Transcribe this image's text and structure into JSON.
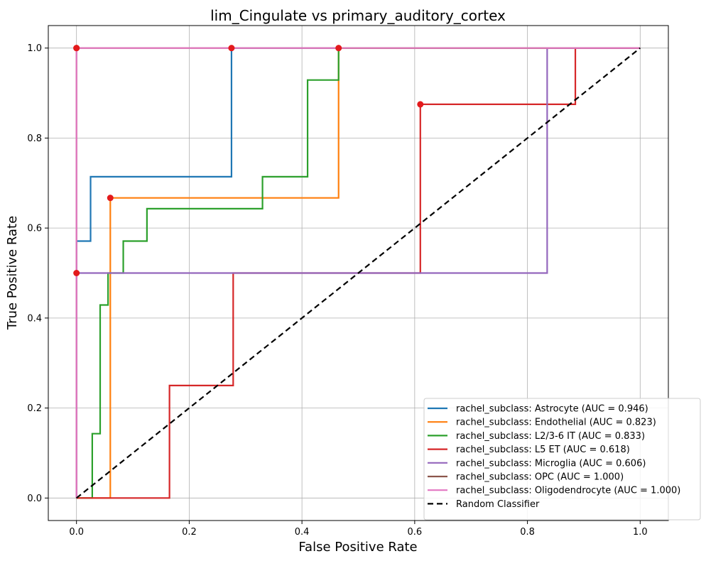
{
  "chart_data": {
    "type": "line",
    "title": "lim_Cingulate vs primary_auditory_cortex",
    "xlabel": "False Positive Rate",
    "ylabel": "True Positive Rate",
    "xlim": [
      -0.05,
      1.05
    ],
    "ylim": [
      -0.05,
      1.05
    ],
    "xticks": [
      0.0,
      0.2,
      0.4,
      0.6,
      0.8,
      1.0
    ],
    "xtick_labels": [
      "0.0",
      "0.2",
      "0.4",
      "0.6",
      "0.8",
      "1.0"
    ],
    "yticks": [
      0.0,
      0.2,
      0.4,
      0.6,
      0.8,
      1.0
    ],
    "ytick_labels": [
      "0.0",
      "0.2",
      "0.4",
      "0.6",
      "0.8",
      "1.0"
    ],
    "grid": true,
    "legend_position": "lower-right",
    "series": [
      {
        "name": "rachel_subclass: Astrocyte (AUC = 0.946)",
        "color": "#1f77b4",
        "x": [
          0,
          0,
          0.025,
          0.025,
          0.275,
          0.275,
          1.0
        ],
        "y": [
          0,
          0.571,
          0.571,
          0.714,
          0.714,
          1.0,
          1.0
        ],
        "marker": [
          0.275,
          1.0
        ]
      },
      {
        "name": "rachel_subclass: Endothelial (AUC = 0.823)",
        "color": "#ff7f0e",
        "x": [
          0,
          0.06,
          0.06,
          0.465,
          0.465,
          1.0
        ],
        "y": [
          0,
          0,
          0.667,
          0.667,
          1.0,
          1.0
        ],
        "marker": [
          0.06,
          0.667
        ]
      },
      {
        "name": "rachel_subclass: L2/3-6 IT (AUC = 0.833)",
        "color": "#2ca02c",
        "x": [
          0,
          0.028,
          0.028,
          0.042,
          0.042,
          0.056,
          0.056,
          0.083,
          0.083,
          0.125,
          0.125,
          0.33,
          0.33,
          0.41,
          0.41,
          0.465,
          0.465,
          1.0
        ],
        "y": [
          0,
          0,
          0.143,
          0.143,
          0.429,
          0.429,
          0.5,
          0.5,
          0.571,
          0.571,
          0.643,
          0.643,
          0.714,
          0.714,
          0.929,
          0.929,
          1.0,
          1.0
        ],
        "marker": [
          0.465,
          1.0
        ]
      },
      {
        "name": "rachel_subclass: L5 ET (AUC = 0.618)",
        "color": "#d62728",
        "x": [
          0,
          0.165,
          0.165,
          0.278,
          0.278,
          0.61,
          0.61,
          0.885,
          0.885,
          1.0
        ],
        "y": [
          0,
          0,
          0.25,
          0.25,
          0.5,
          0.5,
          0.875,
          0.875,
          1.0,
          1.0
        ],
        "marker": [
          0.61,
          0.875
        ]
      },
      {
        "name": "rachel_subclass: Microglia (AUC = 0.606)",
        "color": "#9467bd",
        "x": [
          0,
          0,
          0.835,
          0.835,
          1.0
        ],
        "y": [
          0,
          0.5,
          0.5,
          1.0,
          1.0
        ],
        "marker": [
          0,
          0.5
        ]
      },
      {
        "name": "rachel_subclass: OPC (AUC = 1.000)",
        "color": "#8c564b",
        "x": [
          0,
          0,
          1.0
        ],
        "y": [
          0,
          1.0,
          1.0
        ],
        "marker": [
          0,
          1.0
        ]
      },
      {
        "name": "rachel_subclass: Oligodendrocyte (AUC = 1.000)",
        "color": "#e377c2",
        "x": [
          0,
          0,
          1.0
        ],
        "y": [
          0,
          1.0,
          1.0
        ],
        "marker": [
          0,
          1.0
        ]
      }
    ],
    "reference_line": {
      "name": "Random Classifier",
      "color": "#000000",
      "style": "dashed",
      "x": [
        0,
        1
      ],
      "y": [
        0,
        1
      ]
    },
    "marker_color": "#e31a1c"
  }
}
